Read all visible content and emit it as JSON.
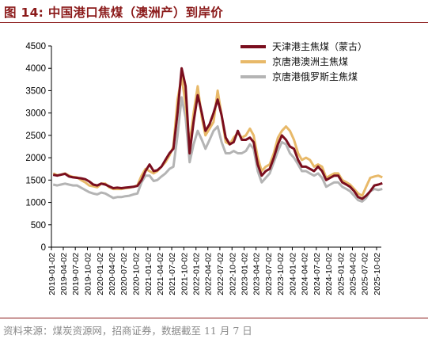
{
  "title": "图 14:  中国港口焦煤（澳洲产）到岸价",
  "source": "资料来源：煤炭资源网，招商证券，数据截至 11 月 7 日",
  "chart_data": {
    "type": "line",
    "title": "图 14:  中国港口焦煤（澳洲产）到岸价",
    "xlabel": "",
    "ylabel": "",
    "ylim": [
      0,
      4500
    ],
    "yticks": [
      0,
      500,
      1000,
      1500,
      2000,
      2500,
      3000,
      3500,
      4000,
      4500
    ],
    "grid": false,
    "legend_position": "top-right",
    "xticks": [
      "2019-01-02",
      "2019-04-02",
      "2019-07-02",
      "2019-10-02",
      "2020-01-02",
      "2020-04-02",
      "2020-07-02",
      "2020-10-02",
      "2021-01-02",
      "2021-04-02",
      "2021-07-02",
      "2021-10-02",
      "2022-01-02",
      "2022-04-02",
      "2022-07-02",
      "2022-10-02",
      "2023-01-02",
      "2023-04-02",
      "2023-07-02",
      "2023-10-02",
      "2024-01-02",
      "2024-04-02",
      "2024-07-02",
      "2024-10-02",
      "2025-01-02",
      "2025-04-02",
      "2025-07-02",
      "2025-10-02"
    ],
    "x": [
      "2019-01",
      "2019-02",
      "2019-03",
      "2019-04",
      "2019-05",
      "2019-06",
      "2019-07",
      "2019-08",
      "2019-09",
      "2019-10",
      "2019-11",
      "2019-12",
      "2020-01",
      "2020-02",
      "2020-03",
      "2020-04",
      "2020-05",
      "2020-06",
      "2020-07",
      "2020-08",
      "2020-09",
      "2020-10",
      "2020-11",
      "2020-12",
      "2021-01",
      "2021-02",
      "2021-03",
      "2021-04",
      "2021-05",
      "2021-06",
      "2021-07",
      "2021-08",
      "2021-09",
      "2021-10",
      "2021-11",
      "2021-12",
      "2022-01",
      "2022-02",
      "2022-03",
      "2022-04",
      "2022-05",
      "2022-06",
      "2022-07",
      "2022-08",
      "2022-09",
      "2022-10",
      "2022-11",
      "2022-12",
      "2023-01",
      "2023-02",
      "2023-03",
      "2023-04",
      "2023-05",
      "2023-06",
      "2023-07",
      "2023-08",
      "2023-09",
      "2023-10",
      "2023-11",
      "2023-12",
      "2024-01",
      "2024-02",
      "2024-03",
      "2024-04",
      "2024-05",
      "2024-06",
      "2024-07",
      "2024-08",
      "2024-09",
      "2024-10",
      "2024-11",
      "2024-12",
      "2025-01",
      "2025-02",
      "2025-03",
      "2025-04",
      "2025-05",
      "2025-06",
      "2025-07",
      "2025-08",
      "2025-09",
      "2025-10",
      "2025-11"
    ],
    "series": [
      {
        "name": "天津港主焦煤（蒙古）",
        "color": "#7a0e1e",
        "values": [
          1620,
          1600,
          1620,
          1640,
          1580,
          1560,
          1550,
          1540,
          1520,
          1470,
          1400,
          1380,
          1420,
          1400,
          1360,
          1320,
          1330,
          1320,
          1330,
          1340,
          1350,
          1370,
          1500,
          1700,
          1850,
          1700,
          1720,
          1800,
          1950,
          2100,
          2200,
          3000,
          4000,
          3600,
          2100,
          2800,
          3400,
          3000,
          2600,
          2750,
          3000,
          3300,
          2950,
          2450,
          2300,
          2350,
          2600,
          2400,
          2400,
          2450,
          2350,
          1850,
          1600,
          1700,
          1750,
          2000,
          2300,
          2500,
          2400,
          2250,
          2200,
          1950,
          1800,
          1800,
          1750,
          1700,
          1800,
          1700,
          1500,
          1550,
          1600,
          1600,
          1450,
          1400,
          1350,
          1250,
          1120,
          1080,
          1150,
          1250,
          1380,
          1400,
          1430
        ]
      },
      {
        "name": "京唐港澳洲主焦煤",
        "color": "#e8b969",
        "values": [
          1650,
          1610,
          1620,
          1650,
          1600,
          1570,
          1560,
          1500,
          1450,
          1380,
          1360,
          1340,
          1420,
          1420,
          1340,
          1300,
          1300,
          1300,
          1320,
          1330,
          1350,
          1380,
          1600,
          1750,
          1700,
          1650,
          1700,
          1800,
          1900,
          2050,
          2250,
          3300,
          3800,
          3200,
          2300,
          3000,
          3600,
          2900,
          2500,
          2650,
          2800,
          3500,
          2950,
          2350,
          2300,
          2450,
          2550,
          2450,
          2500,
          2650,
          2500,
          2000,
          1700,
          1800,
          1850,
          2100,
          2450,
          2600,
          2700,
          2600,
          2400,
          2100,
          1950,
          2000,
          1950,
          1800,
          1850,
          1800,
          1550,
          1600,
          1650,
          1650,
          1500,
          1450,
          1400,
          1300,
          1200,
          1150,
          1350,
          1550,
          1580,
          1600,
          1560
        ]
      },
      {
        "name": "京唐港俄罗斯主焦煤",
        "color": "#b4b4b4",
        "values": [
          1400,
          1380,
          1400,
          1420,
          1400,
          1380,
          1380,
          1330,
          1280,
          1230,
          1200,
          1180,
          1220,
          1200,
          1150,
          1100,
          1120,
          1120,
          1140,
          1150,
          1180,
          1200,
          1450,
          1600,
          1600,
          1480,
          1500,
          1580,
          1650,
          1750,
          1800,
          2500,
          3350,
          2900,
          1900,
          2300,
          2600,
          2400,
          2200,
          2400,
          2600,
          2700,
          2350,
          2100,
          2100,
          2150,
          2100,
          2100,
          2150,
          2300,
          2200,
          1700,
          1450,
          1550,
          1650,
          1900,
          2150,
          2350,
          2300,
          2100,
          2000,
          1850,
          1700,
          1700,
          1650,
          1600,
          1650,
          1550,
          1350,
          1400,
          1450,
          1450,
          1350,
          1300,
          1250,
          1150,
          1050,
          1020,
          1100,
          1250,
          1300,
          1280,
          1300
        ]
      }
    ]
  }
}
